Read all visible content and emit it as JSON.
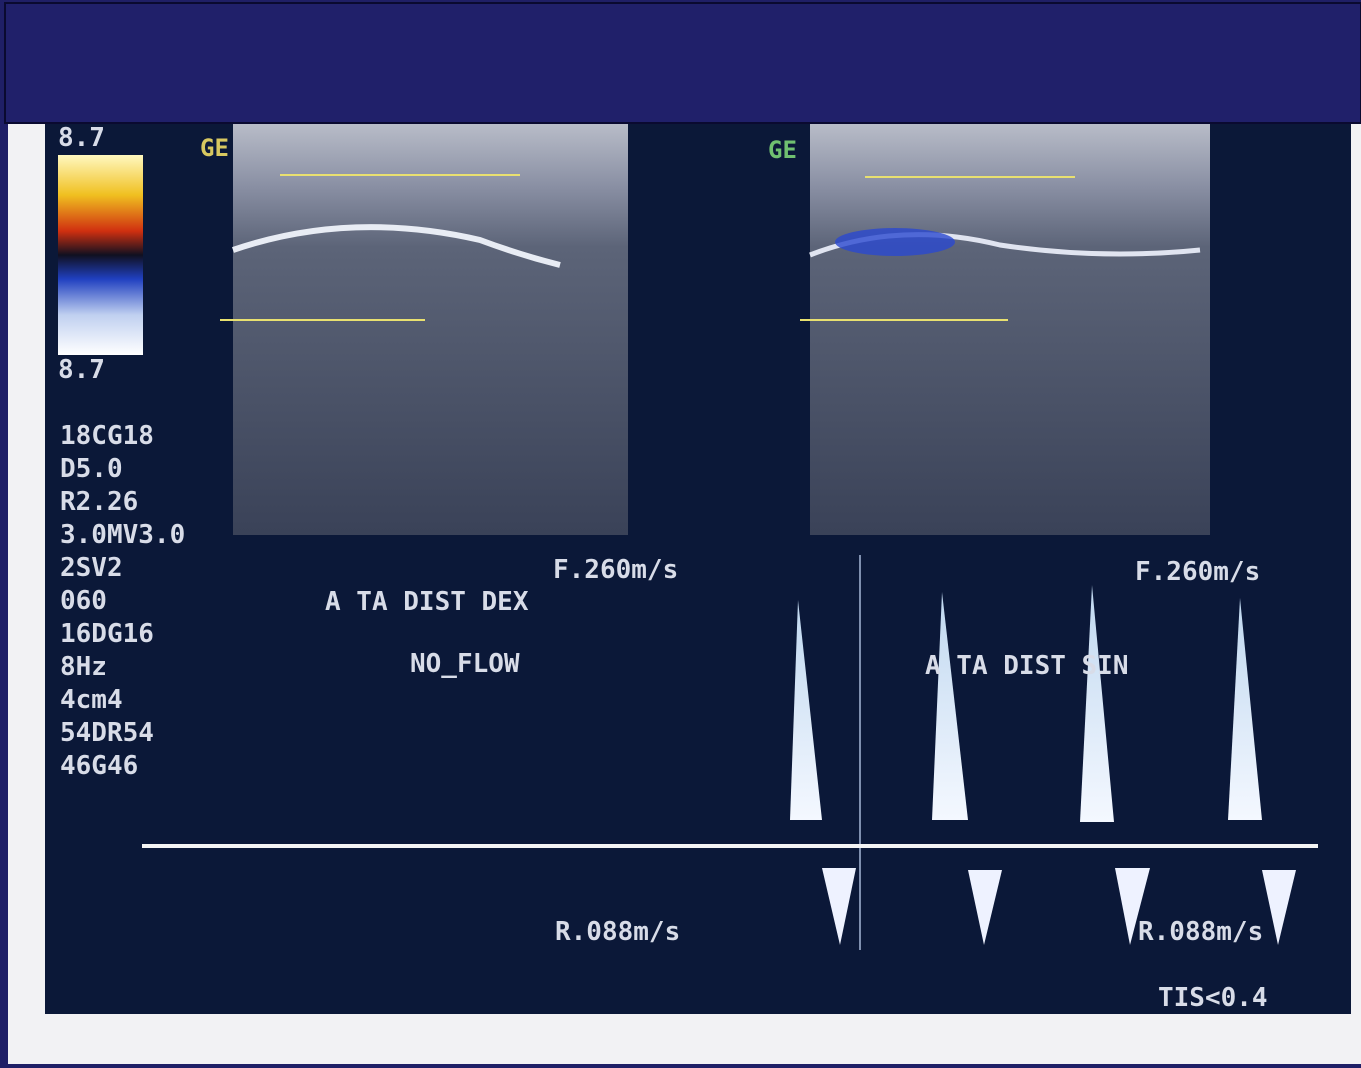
{
  "scale_top": "8.7",
  "scale_bottom": "8.7",
  "left_brand": "GE",
  "right_brand": "GE",
  "settings": [
    "18CG18",
    "D5.0",
    "R2.26",
    "3.0MV3.0",
    "2SV2",
    "060",
    "16DG16",
    "8Hz",
    "4cm4",
    "54DR54",
    "46G46"
  ],
  "left_panel": {
    "velocity_top": "F.260m/s",
    "label": "A TA  DIST DEX",
    "status": "NO_FLOW",
    "velocity_bottom": "R.088m/s"
  },
  "right_panel": {
    "velocity_top": "F.260m/s",
    "label": "A TA DIST SIN",
    "velocity_bottom": "R.088m/s"
  },
  "footer": "TIS<0.4"
}
